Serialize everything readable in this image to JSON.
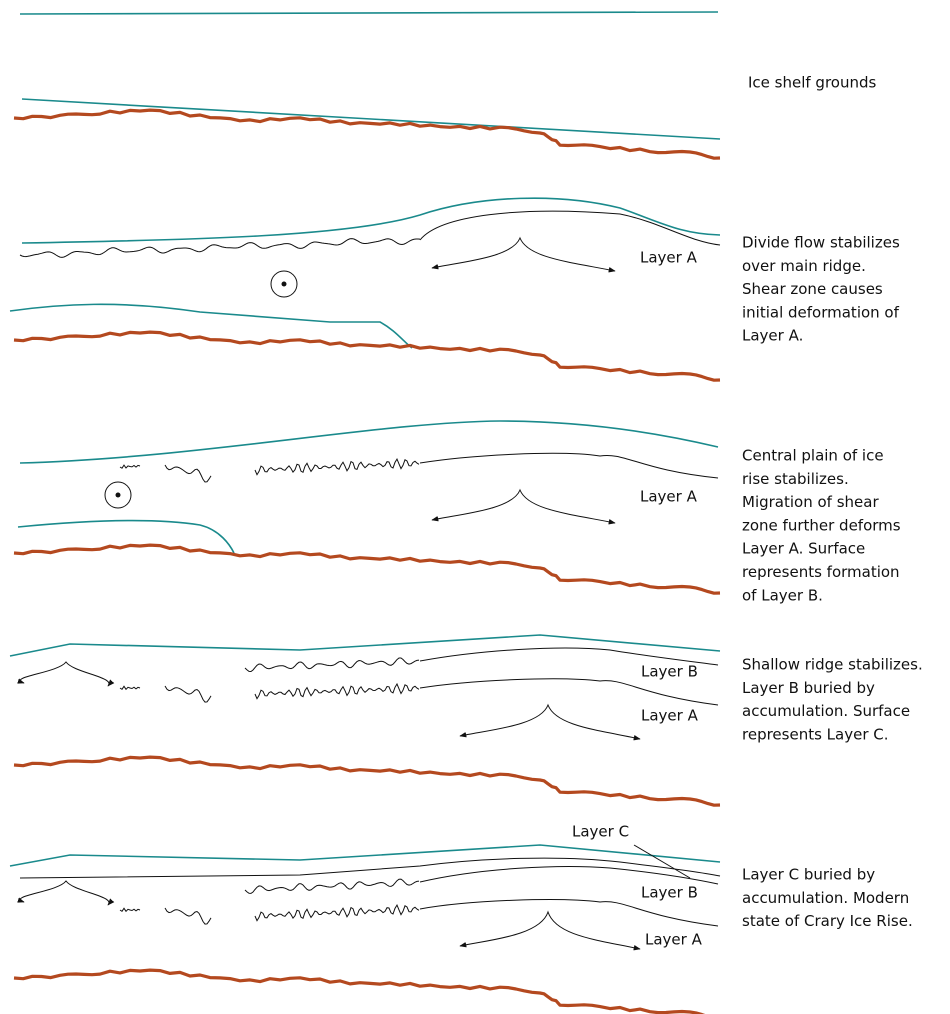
{
  "panels": [
    {
      "caption": [
        "Ice shelf grounds"
      ],
      "labels": []
    },
    {
      "caption": [
        "Divide flow stabilizes",
        "over main ridge.",
        "Shear zone causes",
        "initial deformation of",
        "Layer A."
      ],
      "labels": [
        "Layer A"
      ]
    },
    {
      "caption": [
        "Central plain of ice",
        "rise stabilizes.",
        "Migration of shear",
        "zone further deforms",
        "Layer A. Surface",
        "represents formation",
        "of Layer B."
      ],
      "labels": [
        "Layer A"
      ]
    },
    {
      "caption": [
        "Shallow ridge stabilizes.",
        "Layer B buried by",
        "accumulation. Surface",
        "represents Layer C."
      ],
      "labels": [
        "Layer B",
        "Layer A"
      ]
    },
    {
      "caption": [
        "Layer C buried by",
        "accumulation. Modern",
        "state of Crary Ice Rise."
      ],
      "labels": [
        "Layer C",
        "Layer B",
        "Layer A"
      ]
    }
  ]
}
